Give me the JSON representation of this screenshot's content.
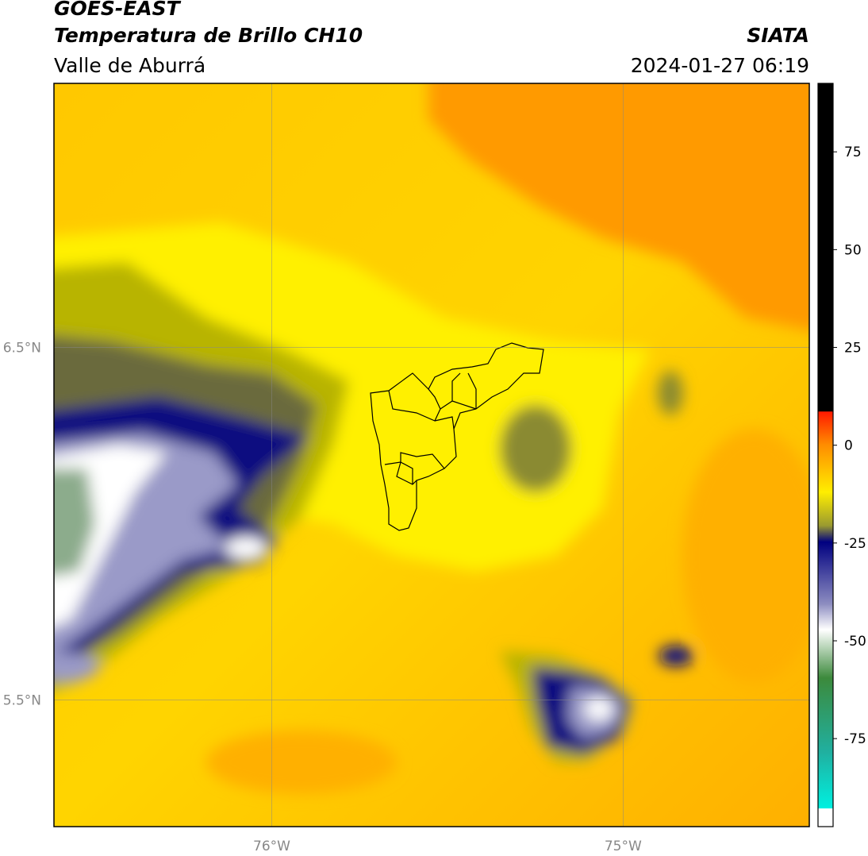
{
  "header": {
    "title": "GOES-EAST",
    "subtitle": "Temperatura de Brillo CH10",
    "region": "Valle de Aburrá",
    "source": "SIATA",
    "datetime": "2024-01-27 06:19"
  },
  "map": {
    "xlim": [
      -76.62,
      -74.47
    ],
    "ylim": [
      5.14,
      7.25
    ],
    "xticks": [
      {
        "value": -76,
        "label": "76°W"
      },
      {
        "value": -75,
        "label": "75°W"
      }
    ],
    "yticks": [
      {
        "value": 6.5,
        "label": "6.5°N"
      },
      {
        "value": 5.5,
        "label": "5.5°N"
      }
    ],
    "grid": true
  },
  "colorbar": {
    "lim": [
      -97.5,
      92.5
    ],
    "ticks": [
      -75,
      -50,
      -25,
      0,
      25,
      50,
      75
    ]
  }
}
